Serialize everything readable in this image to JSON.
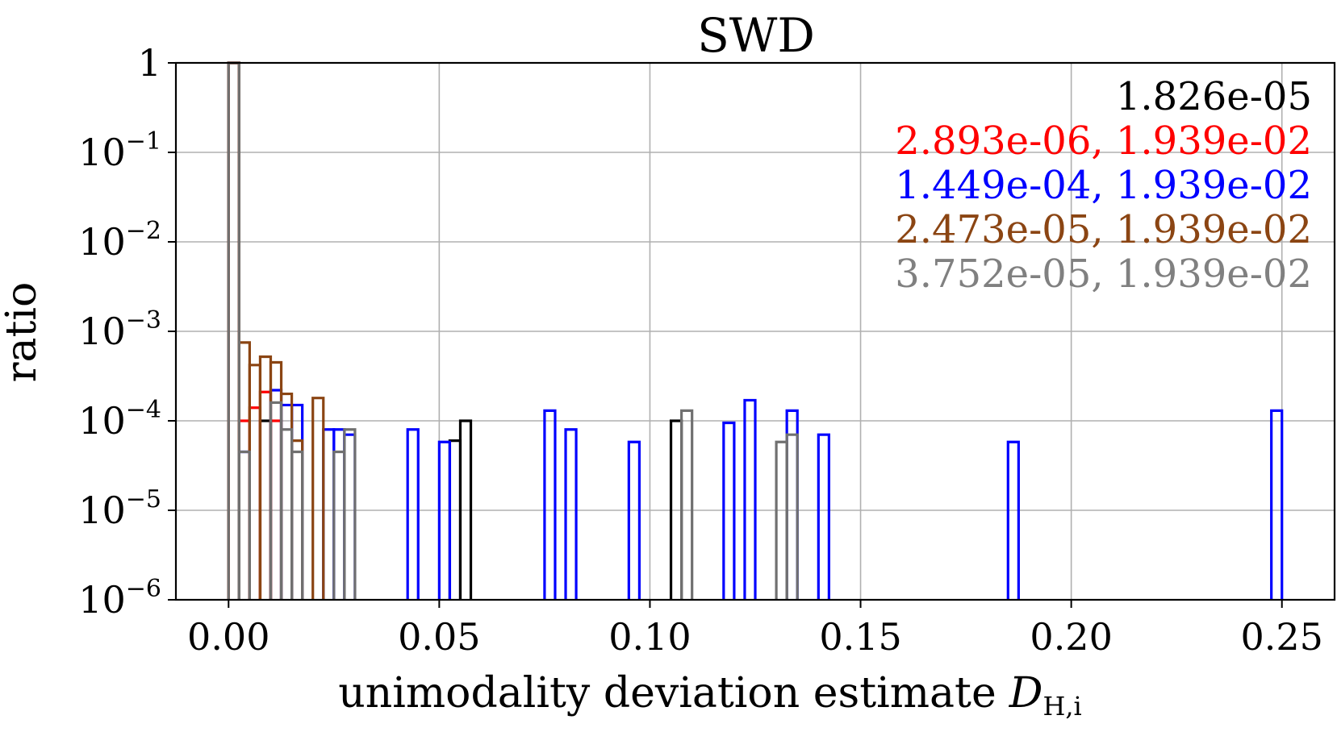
{
  "chart_data": {
    "type": "histogram",
    "title": "SWD",
    "xlabel": "unimodality deviation estimate",
    "xlabel_math": {
      "base": "D",
      "sub": "H,i"
    },
    "ylabel": "ratio",
    "yscale": "log",
    "xlim": [
      -0.0125,
      0.2625
    ],
    "ylim": [
      1e-06,
      1
    ],
    "grid": true,
    "x_ticks": [
      0.0,
      0.05,
      0.1,
      0.15,
      0.2,
      0.25
    ],
    "x_tick_labels": [
      "0.00",
      "0.05",
      "0.10",
      "0.15",
      "0.20",
      "0.25"
    ],
    "y_ticks": [
      {
        "value": 1,
        "base": "1",
        "exp": ""
      },
      {
        "value": 0.1,
        "base": "10",
        "exp": "−1"
      },
      {
        "value": 0.01,
        "base": "10",
        "exp": "−2"
      },
      {
        "value": 0.001,
        "base": "10",
        "exp": "−3"
      },
      {
        "value": 0.0001,
        "base": "10",
        "exp": "−4"
      },
      {
        "value": 1e-05,
        "base": "10",
        "exp": "−5"
      },
      {
        "value": 1e-06,
        "base": "10",
        "exp": "−6"
      }
    ],
    "bin_width": 0.0025,
    "annotations": [
      {
        "text": "1.826e-05",
        "color": "#000000"
      },
      {
        "text": "2.893e-06, 1.939e-02",
        "color": "#ff0000"
      },
      {
        "text": "1.449e-04, 1.939e-02",
        "color": "#0000ff"
      },
      {
        "text": "2.473e-05, 1.939e-02",
        "color": "#8b4513"
      },
      {
        "text": "3.752e-05, 1.939e-02",
        "color": "#808080"
      }
    ],
    "series": [
      {
        "name": "black",
        "color": "#000000",
        "bins": [
          [
            0.0,
            1.0
          ],
          [
            0.0075,
            0.0001
          ],
          [
            0.0525,
            6e-05
          ],
          [
            0.055,
            0.0001
          ],
          [
            0.105,
            0.0001
          ]
        ]
      },
      {
        "name": "red",
        "color": "#ff0000",
        "bins": [
          [
            0.0,
            1.0
          ],
          [
            0.0025,
            0.0001
          ],
          [
            0.005,
            0.00014
          ],
          [
            0.0075,
            0.00021
          ],
          [
            0.01,
            0.0001
          ]
        ]
      },
      {
        "name": "blue",
        "color": "#0000ff",
        "bins": [
          [
            0.0025,
            4.5e-05
          ],
          [
            0.01,
            0.00022
          ],
          [
            0.0125,
            0.00015
          ],
          [
            0.015,
            0.00015
          ],
          [
            0.0225,
            8e-05
          ],
          [
            0.025,
            8e-05
          ],
          [
            0.0275,
            7e-05
          ],
          [
            0.0425,
            8e-05
          ],
          [
            0.05,
            5.8e-05
          ],
          [
            0.075,
            0.00013
          ],
          [
            0.08,
            8e-05
          ],
          [
            0.095,
            5.8e-05
          ],
          [
            0.1175,
            9.5e-05
          ],
          [
            0.1225,
            0.00017
          ],
          [
            0.1325,
            0.00013
          ],
          [
            0.14,
            7e-05
          ],
          [
            0.185,
            5.8e-05
          ],
          [
            0.2475,
            0.00013
          ]
        ]
      },
      {
        "name": "brown",
        "color": "#8b4513",
        "bins": [
          [
            0.0,
            1.0
          ],
          [
            0.0025,
            0.00075
          ],
          [
            0.005,
            0.00042
          ],
          [
            0.0075,
            0.00052
          ],
          [
            0.01,
            0.00045
          ],
          [
            0.0125,
            0.0002
          ],
          [
            0.015,
            6e-05
          ],
          [
            0.02,
            0.00018
          ]
        ]
      },
      {
        "name": "gray",
        "color": "#707070",
        "bins": [
          [
            0.0,
            1.0
          ],
          [
            0.0025,
            4.5e-05
          ],
          [
            0.01,
            0.00016
          ],
          [
            0.0125,
            8e-05
          ],
          [
            0.015,
            4.5e-05
          ],
          [
            0.025,
            4.5e-05
          ],
          [
            0.0275,
            8e-05
          ],
          [
            0.1075,
            0.00013
          ],
          [
            0.13,
            5.8e-05
          ],
          [
            0.1325,
            7e-05
          ]
        ]
      }
    ]
  }
}
